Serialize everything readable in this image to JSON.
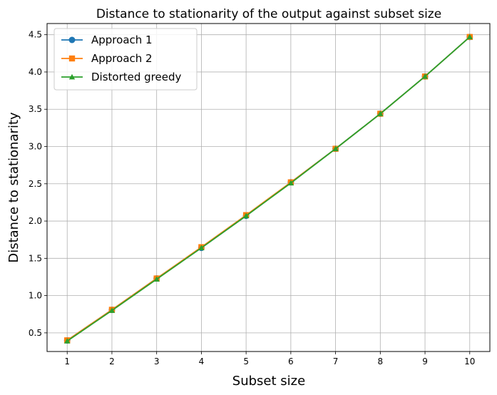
{
  "chart_data": {
    "type": "line",
    "title": "Distance to stationarity of the output against subset size",
    "xlabel": "Subset size",
    "ylabel": "Distance to stationarity",
    "x": [
      1,
      2,
      3,
      4,
      5,
      6,
      7,
      8,
      9,
      10
    ],
    "x_tick_labels": [
      "1",
      "2",
      "3",
      "4",
      "5",
      "6",
      "7",
      "8",
      "9",
      "10"
    ],
    "y_ticks": [
      0.5,
      1.0,
      1.5,
      2.0,
      2.5,
      3.0,
      3.5,
      4.0,
      4.5
    ],
    "y_tick_labels": [
      "0.5",
      "1.0",
      "1.5",
      "2.0",
      "2.5",
      "3.0",
      "3.5",
      "4.0",
      "4.5"
    ],
    "xlim": [
      0.55,
      10.45
    ],
    "ylim": [
      0.25,
      4.65
    ],
    "grid": true,
    "legend_position": "top-left",
    "series": [
      {
        "name": "Approach 1",
        "color": "#1f77b4",
        "marker": "circle",
        "values": [
          0.4,
          0.81,
          1.23,
          1.64,
          2.07,
          2.52,
          2.97,
          3.44,
          3.94,
          4.47
        ]
      },
      {
        "name": "Approach 2",
        "color": "#ff7f0e",
        "marker": "square",
        "values": [
          0.4,
          0.81,
          1.23,
          1.65,
          2.08,
          2.52,
          2.97,
          3.44,
          3.94,
          4.47
        ]
      },
      {
        "name": "Distorted greedy",
        "color": "#2ca02c",
        "marker": "triangle",
        "values": [
          0.39,
          0.8,
          1.22,
          1.64,
          2.07,
          2.51,
          2.97,
          3.44,
          3.94,
          4.47
        ]
      }
    ]
  }
}
